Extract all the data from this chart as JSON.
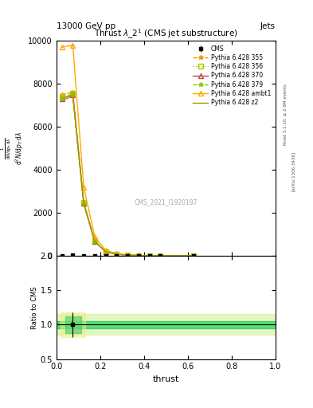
{
  "title": "Thrust $\\lambda\\_2^1$ (CMS jet substructure)",
  "header_left": "13000 GeV pp",
  "header_right": "Jets",
  "watermark": "CMS_2021_I1920187",
  "rivet_text": "Rivet 3.1.10, ≥ 2.9M events",
  "arxiv_text": "[arXiv:1306.3436]",
  "ylabel_main": "1 / mathrm d N / mathrm d p_T mathrm d lambda",
  "ylabel_ratio": "Ratio to CMS",
  "xlabel": "thrust",
  "xlim": [
    0.0,
    1.0
  ],
  "ylim_main": [
    0,
    10000
  ],
  "ylim_ratio": [
    0.5,
    2.0
  ],
  "yticks_main": [
    0,
    2000,
    4000,
    6000,
    8000,
    10000
  ],
  "yticks_ratio": [
    0.5,
    1.0,
    1.5,
    2.0
  ],
  "cms_data_x": [
    0.025,
    0.075,
    0.125,
    0.175,
    0.225,
    0.275,
    0.325,
    0.375,
    0.425,
    0.475,
    0.625
  ],
  "cms_data_y": [
    0,
    40,
    15,
    5,
    2,
    1,
    0.5,
    0.3,
    0.2,
    0.1,
    5
  ],
  "cms_error_y": [
    5,
    8,
    3,
    1,
    0.5,
    0.3,
    0.2,
    0.1,
    0.1,
    0.05,
    1
  ],
  "pythia_x": [
    0.025,
    0.075,
    0.125,
    0.175,
    0.225,
    0.275,
    0.325,
    0.375,
    0.425,
    0.475,
    0.625
  ],
  "pythia_355_y": [
    7500,
    7600,
    2500,
    700,
    200,
    80,
    35,
    15,
    8,
    4,
    15
  ],
  "pythia_356_y": [
    7400,
    7550,
    2480,
    690,
    195,
    78,
    34,
    14,
    7.5,
    3.8,
    14
  ],
  "pythia_370_y": [
    7300,
    7500,
    2450,
    680,
    190,
    77,
    33,
    14,
    7,
    3.6,
    14
  ],
  "pythia_379_y": [
    7350,
    7520,
    2460,
    685,
    192,
    78,
    33.5,
    14,
    7.2,
    3.7,
    14
  ],
  "pythia_ambt1_y": [
    9700,
    9800,
    3200,
    900,
    260,
    100,
    45,
    20,
    10,
    5,
    18
  ],
  "pythia_z2_y": [
    7200,
    7450,
    2420,
    670,
    185,
    75,
    32,
    13.5,
    7,
    3.5,
    13.5
  ],
  "colors": [
    "#ff8c00",
    "#aacc00",
    "#cc4444",
    "#88cc00",
    "#ffaa00",
    "#999900"
  ],
  "lstyles": [
    "--",
    ":",
    "-",
    "--",
    "-",
    "-"
  ],
  "markers": [
    "*",
    "s",
    "^",
    "*",
    "^",
    "None"
  ],
  "labels": [
    "Pythia 6.428 355",
    "Pythia 6.428 356",
    "Pythia 6.428 370",
    "Pythia 6.428 379",
    "Pythia 6.428 ambt1",
    "Pythia 6.428 z2"
  ],
  "ratio_band_inner_color": "#00cc44",
  "ratio_band_outer_color": "#ccee88",
  "ratio_band_inner_alpha": 0.6,
  "ratio_band_outer_alpha": 0.5,
  "background_color": "#ffffff"
}
